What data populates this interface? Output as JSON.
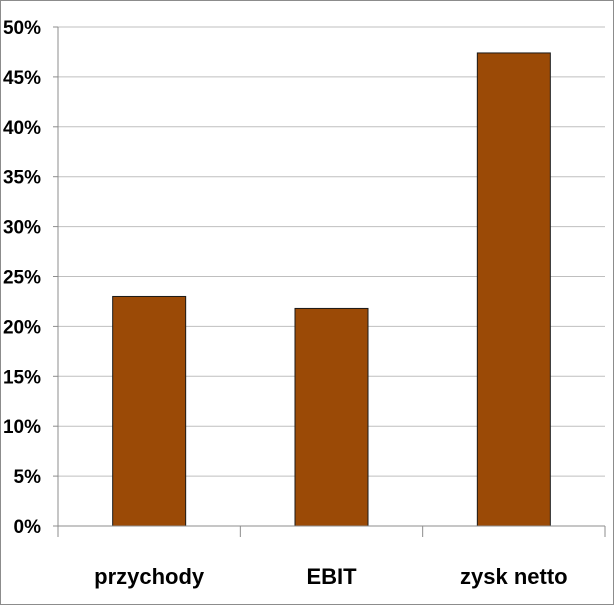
{
  "chart_data": {
    "type": "bar",
    "categories": [
      "przychody",
      "EBIT",
      "zysk netto"
    ],
    "values": [
      23,
      21.8,
      47.4
    ],
    "ylim": [
      0,
      50
    ],
    "yticks": [
      "0%",
      "5%",
      "10%",
      "15%",
      "20%",
      "25%",
      "30%",
      "35%",
      "40%",
      "45%",
      "50%"
    ],
    "title": "",
    "xlabel": "",
    "ylabel": "",
    "grid": true,
    "legend": "none",
    "bar_color": "#9b4a06",
    "bar_edge_color": "#1a1a1a",
    "grid_color": "#bfbfbf"
  }
}
